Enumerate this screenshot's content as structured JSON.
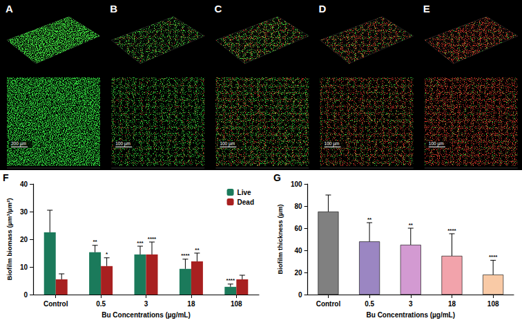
{
  "figure_panels": [
    {
      "label": "A",
      "scale_bar": "200 µm"
    },
    {
      "label": "B",
      "scale_bar": "100 µm"
    },
    {
      "label": "C",
      "scale_bar": "100 µm"
    },
    {
      "label": "D",
      "scale_bar": "100 µm"
    },
    {
      "label": "E",
      "scale_bar": "100 µm"
    }
  ],
  "chart_data": [
    {
      "type": "bar",
      "panel_label": "F",
      "categories": [
        "Control",
        "0.5",
        "3",
        "18",
        "108"
      ],
      "x_label": "Bu Concentrations (µg/mL)",
      "y_label": "Biofilm biomass (µm³/µm²)",
      "ylim": [
        0,
        40
      ],
      "yticks": [
        0,
        10,
        20,
        30,
        40
      ],
      "legend": "top-right",
      "series": [
        {
          "name": "Live",
          "color": "#1b7a5b",
          "values": [
            22.5,
            15.3,
            14.5,
            9.3,
            2.8
          ],
          "errors": [
            8,
            2.5,
            3,
            3.5,
            1
          ],
          "significance": [
            null,
            "**",
            "***",
            "****",
            "****"
          ]
        },
        {
          "name": "Dead",
          "color": "#a82020",
          "values": [
            5.5,
            10.3,
            14.5,
            12,
            5.5
          ],
          "errors": [
            2,
            3,
            4.5,
            3,
            1.5
          ],
          "significance": [
            null,
            "*",
            "****",
            "**",
            null
          ]
        }
      ]
    },
    {
      "type": "bar",
      "panel_label": "G",
      "categories": [
        "Control",
        "0.5",
        "3",
        "18",
        "108"
      ],
      "x_label": "Bu Concentrations (µg/mL)",
      "y_label": "Biofilm thickness (µm)",
      "ylim": [
        0,
        100
      ],
      "yticks": [
        0,
        20,
        40,
        60,
        80,
        100
      ],
      "colors": [
        "#808080",
        "#9b86c2",
        "#d39ad2",
        "#f2a3ab",
        "#f9caa6"
      ],
      "values": [
        75,
        48,
        45,
        35,
        18
      ],
      "errors": [
        15,
        17,
        15,
        20,
        13
      ],
      "significance": [
        null,
        "**",
        "**",
        "****",
        "****"
      ]
    }
  ]
}
